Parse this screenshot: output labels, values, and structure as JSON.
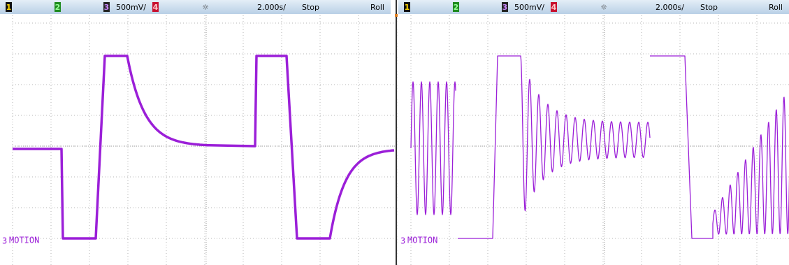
{
  "panels": [
    {
      "header": {
        "ch1": "1",
        "ch2": "2",
        "ch3": "3",
        "scale": "500mV/",
        "ch4": "4",
        "timebase": "2.000s/",
        "status": "Stop",
        "mode": "Roll"
      },
      "label": {
        "channel": "3",
        "name": "MOTION"
      }
    },
    {
      "header": {
        "ch1": "1",
        "ch2": "2",
        "ch3": "3",
        "scale": "500mV/",
        "ch4": "4",
        "timebase": "2.000s/",
        "status": "Stop",
        "mode": "Roll"
      },
      "label": {
        "channel": "3",
        "name": "MOTION"
      }
    }
  ]
}
